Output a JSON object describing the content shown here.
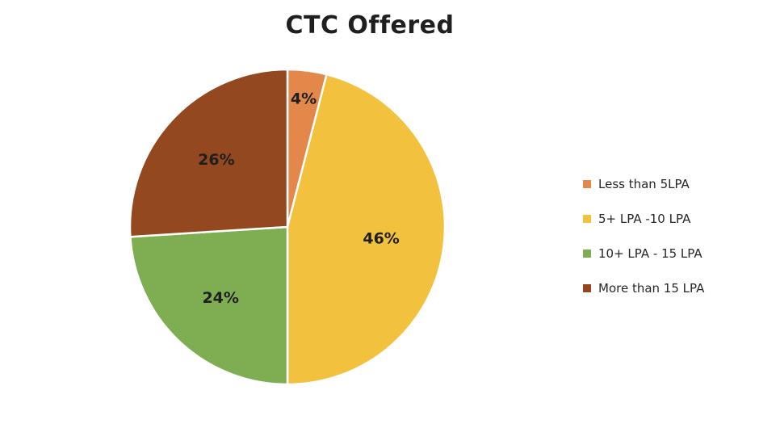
{
  "chart_data": {
    "type": "pie",
    "title": "CTC Offered",
    "categories": [
      "Less than 5LPA",
      "5+ LPA -10 LPA",
      "10+ LPA - 15 LPA",
      "More than 15 LPA"
    ],
    "values": [
      4,
      46,
      24,
      26
    ],
    "labels": [
      "4%",
      "46%",
      "24%",
      "26%"
    ],
    "colors": [
      "#e3874a",
      "#f2c13e",
      "#7fae52",
      "#93481f"
    ],
    "legend_position": "right",
    "start_angle": "12 o'clock",
    "direction": "clockwise"
  }
}
